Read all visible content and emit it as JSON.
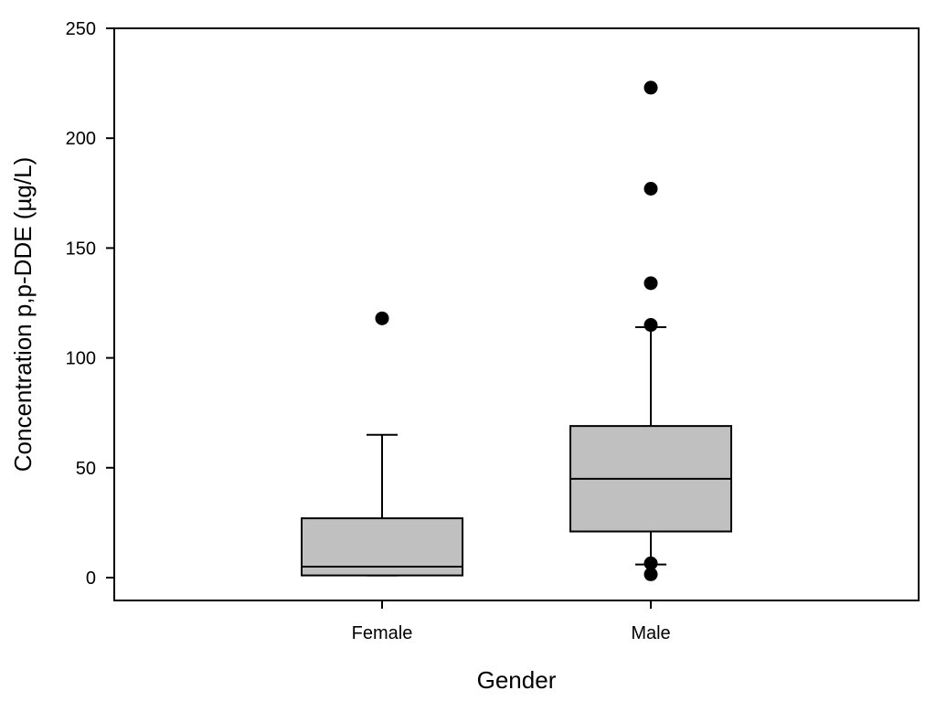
{
  "chart_data": {
    "type": "box",
    "xlabel": "Gender",
    "ylabel": "Concentration p,p-DDE (µg/L)",
    "ylim": [
      -10,
      250
    ],
    "yticks": [
      0,
      50,
      100,
      150,
      200,
      250
    ],
    "grid": false,
    "categories": [
      "Female",
      "Male"
    ],
    "box_color": "#c0c0c0",
    "boxes": [
      {
        "category": "Female",
        "whisker_low": 1,
        "q1": 1,
        "median": 5,
        "q3": 27,
        "whisker_high": 65,
        "outliers": [
          118
        ]
      },
      {
        "category": "Male",
        "whisker_low": 6,
        "q1": 21,
        "median": 45,
        "q3": 69,
        "whisker_high": 114,
        "outliers": [
          223,
          177,
          134,
          115,
          6.5,
          1.5
        ]
      }
    ]
  }
}
